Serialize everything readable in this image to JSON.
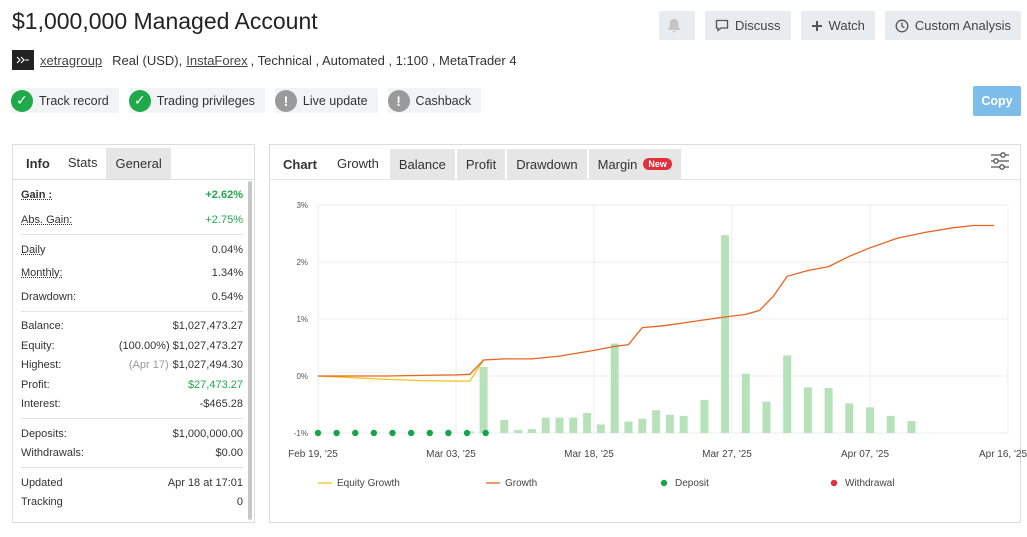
{
  "title": "$1,000,000 Managed Account",
  "actions": {
    "discuss": "Discuss",
    "watch": "Watch",
    "custom_analysis": "Custom Analysis",
    "copy": "Copy"
  },
  "info_line": {
    "user": "xetragroup",
    "account_type": "Real (USD),",
    "broker": "InstaForex",
    "rest": ", Technical , Automated , 1:100 , MetaTrader 4"
  },
  "badges": [
    {
      "label": "Track record",
      "status": "verified"
    },
    {
      "label": "Trading privileges",
      "status": "verified"
    },
    {
      "label": "Live update",
      "status": "unverified"
    },
    {
      "label": "Cashback",
      "status": "unverified"
    }
  ],
  "left_tabs": [
    "Info",
    "Stats",
    "General"
  ],
  "stats": {
    "gain": {
      "label": "Gain :",
      "value": "+2.62%"
    },
    "abs_gain": {
      "label": "Abs. Gain:",
      "value": "+2.75%"
    },
    "daily": {
      "label": "Daily",
      "value": "0.04%"
    },
    "monthly": {
      "label": "Monthly:",
      "value": "1.34%"
    },
    "drawdown": {
      "label": "Drawdown:",
      "value": "0.54%"
    },
    "balance": {
      "label": "Balance:",
      "value": "$1,027,473.27"
    },
    "equity": {
      "label": "Equity:",
      "note": "(100.00%)",
      "value": "$1,027,473.27"
    },
    "highest": {
      "label": "Highest:",
      "note": "(Apr 17)",
      "value": "$1,027,494.30"
    },
    "profit": {
      "label": "Profit:",
      "value": "$27,473.27"
    },
    "interest": {
      "label": "Interest:",
      "value": "-$465.28"
    },
    "deposits": {
      "label": "Deposits:",
      "value": "$1,000,000.00"
    },
    "withdrawals": {
      "label": "Withdrawals:",
      "value": "$0.00"
    },
    "updated": {
      "label": "Updated",
      "value": "Apr 18 at 17:01"
    },
    "tracking": {
      "label": "Tracking",
      "value": "0"
    }
  },
  "right_tabs": {
    "chart": "Chart",
    "growth": "Growth",
    "balance": "Balance",
    "profit": "Profit",
    "drawdown": "Drawdown",
    "margin": "Margin",
    "new_badge": "New"
  },
  "colors": {
    "growth": "#e8631f",
    "equity_growth": "#f0c419",
    "bars": "#b7e2b9",
    "deposit": "#17a34a",
    "withdrawal": "#e0303b",
    "copy_button": "#7cbde9"
  },
  "chart_data": {
    "type": "line",
    "ylim": [
      -1,
      3
    ],
    "yticks": [
      "3%",
      "2%",
      "1%",
      "0%",
      "-1%"
    ],
    "xticks": [
      "Feb 19, '25",
      "Mar 03, '25",
      "Mar 18, '25",
      "Mar 27, '25",
      "Apr 07, '25",
      "Apr 16, '25"
    ],
    "legend": [
      "Equity Growth",
      "Growth",
      "Deposit",
      "Withdrawal"
    ],
    "growth": [
      [
        0,
        0.0
      ],
      [
        5,
        0.0
      ],
      [
        10,
        0.0
      ],
      [
        15,
        0.01
      ],
      [
        20,
        0.02
      ],
      [
        22,
        0.03
      ],
      [
        24,
        0.28
      ],
      [
        27,
        0.3
      ],
      [
        31,
        0.3
      ],
      [
        35,
        0.35
      ],
      [
        40,
        0.45
      ],
      [
        43,
        0.52
      ],
      [
        45,
        0.55
      ],
      [
        47,
        0.85
      ],
      [
        50,
        0.88
      ],
      [
        54,
        0.95
      ],
      [
        58,
        1.02
      ],
      [
        62,
        1.08
      ],
      [
        64,
        1.15
      ],
      [
        66,
        1.4
      ],
      [
        68,
        1.75
      ],
      [
        71,
        1.85
      ],
      [
        74,
        1.92
      ],
      [
        77,
        2.1
      ],
      [
        80,
        2.25
      ],
      [
        84,
        2.42
      ],
      [
        88,
        2.52
      ],
      [
        92,
        2.6
      ],
      [
        95,
        2.64
      ],
      [
        98,
        2.64
      ]
    ],
    "equity_growth": [
      [
        0,
        0.0
      ],
      [
        5,
        -0.03
      ],
      [
        10,
        -0.06
      ],
      [
        15,
        -0.08
      ],
      [
        20,
        -0.09
      ],
      [
        22,
        -0.09
      ],
      [
        24,
        0.28
      ]
    ],
    "bars": [
      [
        22,
        -0.97
      ],
      [
        24,
        0.16
      ],
      [
        27,
        -0.77
      ],
      [
        29,
        -0.95
      ],
      [
        31,
        -0.93
      ],
      [
        33,
        -0.73
      ],
      [
        35,
        -0.73
      ],
      [
        37,
        -0.73
      ],
      [
        39,
        -0.65
      ],
      [
        41,
        -0.85
      ],
      [
        43,
        0.57
      ],
      [
        45,
        -0.8
      ],
      [
        47,
        -0.75
      ],
      [
        49,
        -0.6
      ],
      [
        51,
        -0.68
      ],
      [
        53,
        -0.7
      ],
      [
        56,
        -0.42
      ],
      [
        59,
        2.47
      ],
      [
        62,
        0.04
      ],
      [
        65,
        -0.45
      ],
      [
        68,
        0.36
      ],
      [
        71,
        -0.2
      ],
      [
        74,
        -0.21
      ],
      [
        77,
        -0.48
      ],
      [
        80,
        -0.55
      ],
      [
        83,
        -0.7
      ],
      [
        86,
        -0.79
      ]
    ],
    "deposits": [
      0,
      2.7,
      5.4,
      8.1,
      10.8,
      13.5,
      16.2,
      18.9,
      21.6,
      24.3
    ]
  }
}
